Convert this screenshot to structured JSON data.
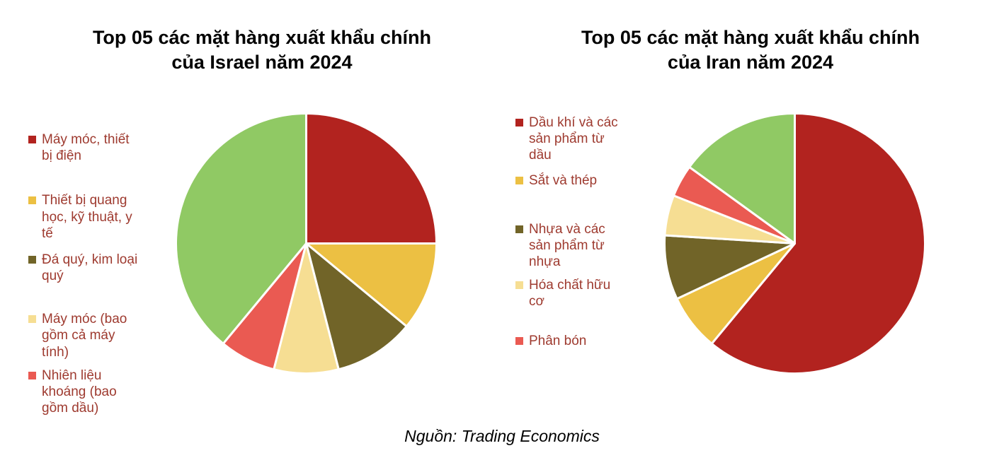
{
  "page": {
    "source_note": "Nguồn: Trading Economics"
  },
  "chart_data": [
    {
      "type": "pie",
      "title": "Top 05 các mặt hàng xuất khẩu chính của Israel năm 2024",
      "title_lines": [
        "Top 05 các mặt hàng xuất khẩu chính",
        "của Israel năm 2024"
      ],
      "legend_position": "left",
      "units": "percent (estimated from slice angles, no data labels shown)",
      "slices": [
        {
          "label": "Máy móc, thiết bị điện",
          "value": 25,
          "color": "#b2231f",
          "in_legend": true
        },
        {
          "label": "Thiết bị quang học, kỹ thuật, y tế",
          "value": 11,
          "color": "#ecc043",
          "in_legend": true
        },
        {
          "label": "Đá quý, kim loại quý",
          "value": 10,
          "color": "#716428",
          "in_legend": true
        },
        {
          "label": "Máy móc (bao gồm cả máy tính)",
          "value": 8,
          "color": "#f6de93",
          "in_legend": true
        },
        {
          "label": "Nhiên liệu khoáng (bao gồm dầu)",
          "value": 7,
          "color": "#ea5a52",
          "in_legend": true
        },
        {
          "label": "",
          "value": 39,
          "color": "#90c964",
          "in_legend": false
        }
      ]
    },
    {
      "type": "pie",
      "title": "Top 05 các mặt hàng xuất khẩu chính của Iran năm 2024",
      "title_lines": [
        "Top 05 các mặt hàng xuất khẩu chính",
        "của Iran năm 2024"
      ],
      "legend_position": "left",
      "units": "percent (estimated from slice angles, no data labels shown)",
      "slices": [
        {
          "label": "Dầu khí và các sản phẩm từ dầu",
          "value": 61,
          "color": "#b2231f",
          "in_legend": true
        },
        {
          "label": "Sắt và thép",
          "value": 7,
          "color": "#ecc043",
          "in_legend": true
        },
        {
          "label": "Nhựa và các sản phẩm từ nhựa",
          "value": 8,
          "color": "#716428",
          "in_legend": true
        },
        {
          "label": "Hóa chất hữu cơ",
          "value": 5,
          "color": "#f6de93",
          "in_legend": true
        },
        {
          "label": "Phân bón",
          "value": 4,
          "color": "#ea5a52",
          "in_legend": true
        },
        {
          "label": "",
          "value": 15,
          "color": "#90c964",
          "in_legend": false
        }
      ]
    }
  ]
}
